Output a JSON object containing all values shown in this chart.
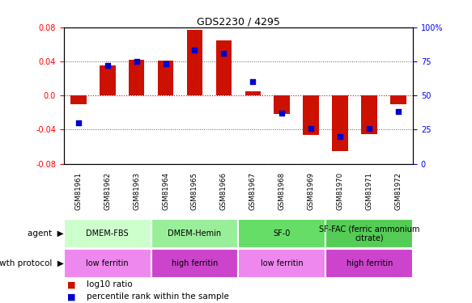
{
  "title": "GDS2230 / 4295",
  "samples": [
    "GSM81961",
    "GSM81962",
    "GSM81963",
    "GSM81964",
    "GSM81965",
    "GSM81966",
    "GSM81967",
    "GSM81968",
    "GSM81969",
    "GSM81970",
    "GSM81971",
    "GSM81972"
  ],
  "log10_ratio": [
    -0.01,
    0.035,
    0.042,
    0.041,
    0.077,
    0.065,
    0.005,
    -0.022,
    -0.046,
    -0.065,
    -0.045,
    -0.01
  ],
  "percentile_rank": [
    30,
    72,
    75,
    73,
    83,
    81,
    60,
    37,
    26,
    20,
    26,
    38
  ],
  "ylim": [
    -0.08,
    0.08
  ],
  "yticks": [
    -0.08,
    -0.04,
    0.0,
    0.04,
    0.08
  ],
  "right_yticks": [
    0,
    25,
    50,
    75,
    100
  ],
  "bar_color": "#cc1100",
  "dot_color": "#0000cc",
  "agent_groups": [
    {
      "label": "DMEM-FBS",
      "start": 0,
      "end": 3,
      "color": "#ccffcc"
    },
    {
      "label": "DMEM-Hemin",
      "start": 3,
      "end": 6,
      "color": "#99ee99"
    },
    {
      "label": "SF-0",
      "start": 6,
      "end": 9,
      "color": "#66dd66"
    },
    {
      "label": "SF-FAC (ferric ammonium\ncitrate)",
      "start": 9,
      "end": 12,
      "color": "#55cc55"
    }
  ],
  "protocol_groups": [
    {
      "label": "low ferritin",
      "start": 0,
      "end": 3,
      "color": "#ee88ee"
    },
    {
      "label": "high ferritin",
      "start": 3,
      "end": 6,
      "color": "#cc44cc"
    },
    {
      "label": "low ferritin",
      "start": 6,
      "end": 9,
      "color": "#ee88ee"
    },
    {
      "label": "high ferritin",
      "start": 9,
      "end": 12,
      "color": "#cc44cc"
    }
  ],
  "agent_label": "agent",
  "protocol_label": "growth protocol",
  "legend_ratio_label": "log10 ratio",
  "legend_rank_label": "percentile rank within the sample",
  "bg_color": "#ffffff",
  "bar_width": 0.55,
  "tick_fontsize": 7,
  "label_fontsize": 8,
  "xtick_bg": "#cccccc"
}
